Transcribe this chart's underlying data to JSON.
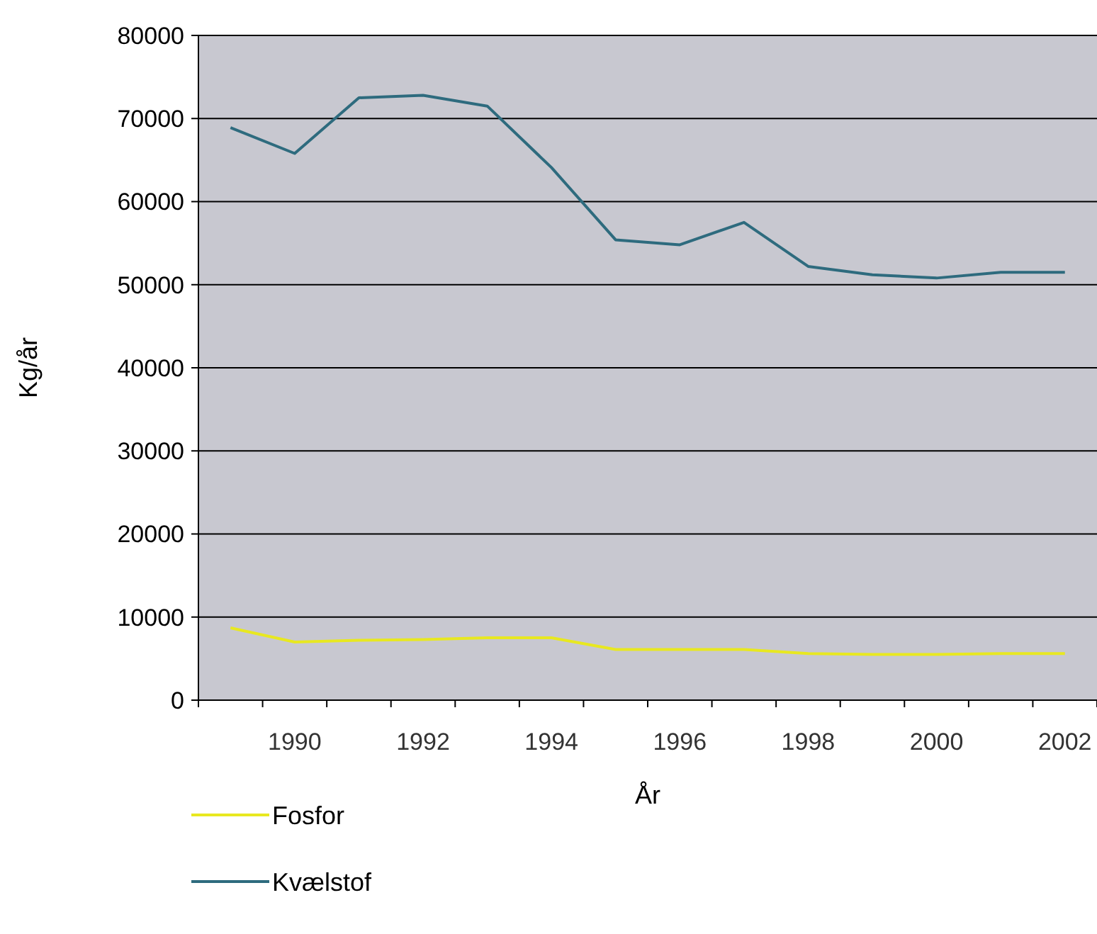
{
  "chart_data": {
    "type": "line",
    "xlabel": "År",
    "ylabel": "Kg/år",
    "categories": [
      null,
      "1990",
      null,
      "1992",
      null,
      "1994",
      null,
      "1996",
      null,
      "1998",
      null,
      "2000",
      null,
      "2002"
    ],
    "series": [
      {
        "name": "Fosfor",
        "color": "#e8e820",
        "values": [
          8700,
          7000,
          7200,
          7300,
          7500,
          7500,
          6100,
          6100,
          6100,
          5600,
          5500,
          5500,
          5600,
          5600
        ]
      },
      {
        "name": "Kvælstof",
        "color": "#2e6b7e",
        "values": [
          68900,
          65800,
          72500,
          72800,
          71500,
          64100,
          55400,
          54800,
          57500,
          52200,
          51200,
          50800,
          51500,
          51500
        ]
      }
    ],
    "ylim": [
      0,
      80000
    ],
    "yticks": [
      0,
      10000,
      20000,
      30000,
      40000,
      50000,
      60000,
      70000,
      80000
    ],
    "grid": "y",
    "legend": "bottom left",
    "marker": "none",
    "line_style": "solid"
  }
}
